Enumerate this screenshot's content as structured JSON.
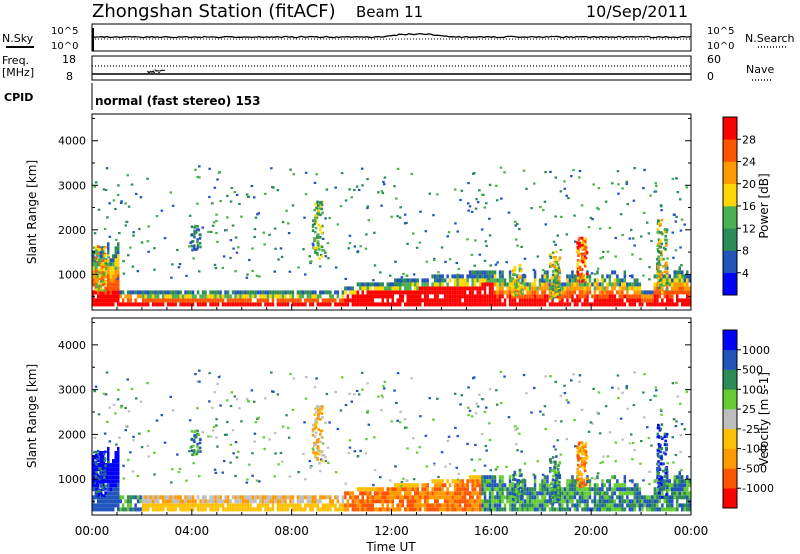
{
  "header": {
    "station": "Zhongshan Station (fitACF)",
    "beam": "Beam 11",
    "date": "10/Sep/2011"
  },
  "strip1": {
    "left_label": "N.Sky",
    "left_ticks": [
      "10^5",
      "10^0"
    ],
    "right_ticks": [
      "10^5",
      "10^0"
    ],
    "right_label": "N.Search"
  },
  "strip2": {
    "left_label_1": "Freq.",
    "left_label_2": "[MHz]",
    "left_ticks": [
      "18",
      "8"
    ],
    "right_ticks": [
      "60",
      "0"
    ],
    "right_label": "Nave"
  },
  "cpid": {
    "label": "CPID",
    "text": "normal (fast stereo) 153"
  },
  "colors": {
    "power": [
      "#0000ff",
      "#2255bb",
      "#2e8b57",
      "#4caf50",
      "#ffd700",
      "#ff9900",
      "#ff5500",
      "#ff0000"
    ],
    "velocity": [
      "#ff0000",
      "#ff5500",
      "#ff9900",
      "#ffc000",
      "#bebebe",
      "#66cc33",
      "#2e8b57",
      "#2255bb",
      "#0000ff"
    ]
  },
  "chart_data": [
    {
      "type": "heatmap",
      "name": "power-panel",
      "ylabel": "Slant Range [km]",
      "yticks": [
        "4000",
        "3000",
        "2000",
        "1000"
      ],
      "ylim": [
        200,
        4600
      ],
      "xlim": [
        0,
        24
      ],
      "colorbar": {
        "label": "Power [dB]",
        "ticks": [
          "28",
          "24",
          "20",
          "16",
          "12",
          "8",
          "4"
        ],
        "range": [
          0,
          32
        ]
      }
    },
    {
      "type": "heatmap",
      "name": "velocity-panel",
      "ylabel": "Slant Range [km]",
      "yticks": [
        "4000",
        "3000",
        "2000",
        "1000"
      ],
      "ylim": [
        200,
        4600
      ],
      "xlim": [
        0,
        24
      ],
      "colorbar": {
        "label": "Velocity [m s-1]",
        "ticks": [
          "1000",
          "500",
          "100",
          "25",
          "-25",
          "-100",
          "-500",
          "-1000"
        ]
      }
    }
  ],
  "xaxis": {
    "ticks": [
      "00:00",
      "04:00",
      "08:00",
      "12:00",
      "16:00",
      "20:00",
      "00:00"
    ],
    "label": "Time UT"
  }
}
